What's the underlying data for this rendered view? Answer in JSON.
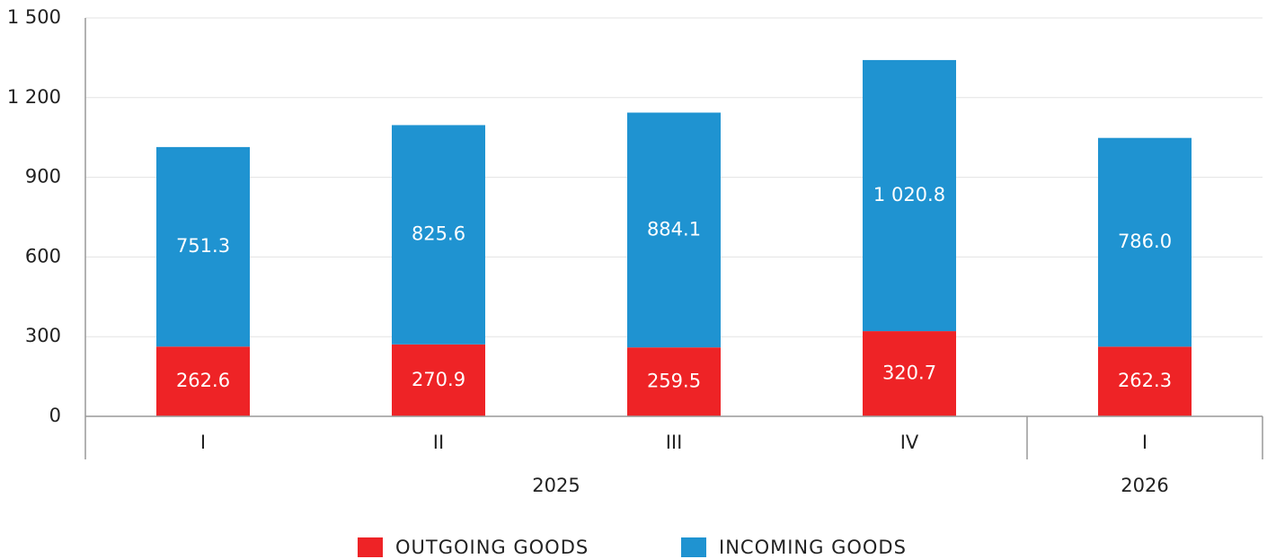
{
  "chart_data": {
    "type": "stacked_bar",
    "categories": [
      "I",
      "II",
      "III",
      "IV",
      "I"
    ],
    "category_groups": [
      "2025",
      "2025",
      "2025",
      "2025",
      "2026"
    ],
    "series": [
      {
        "name": "OUTGOING GOODS",
        "color": "#ee2326",
        "values": [
          262.6,
          270.9,
          259.5,
          320.7,
          262.3
        ],
        "value_labels": [
          "262.6",
          "270.9",
          "259.5",
          "320.7",
          "262.3"
        ]
      },
      {
        "name": "INCOMING GOODS",
        "color": "#1f93d1",
        "values": [
          751.3,
          825.6,
          884.1,
          1020.8,
          786.0
        ],
        "value_labels": [
          "751.3",
          "825.6",
          "884.1",
          "1 020.8",
          "786.0"
        ]
      }
    ],
    "ylim": [
      0,
      1500
    ],
    "yticks": [
      0,
      300,
      600,
      900,
      {
        "value": 1200,
        "label": "1 200"
      },
      {
        "value": 1500,
        "label": "1 500"
      }
    ],
    "grid": true,
    "legend": "bottom"
  }
}
